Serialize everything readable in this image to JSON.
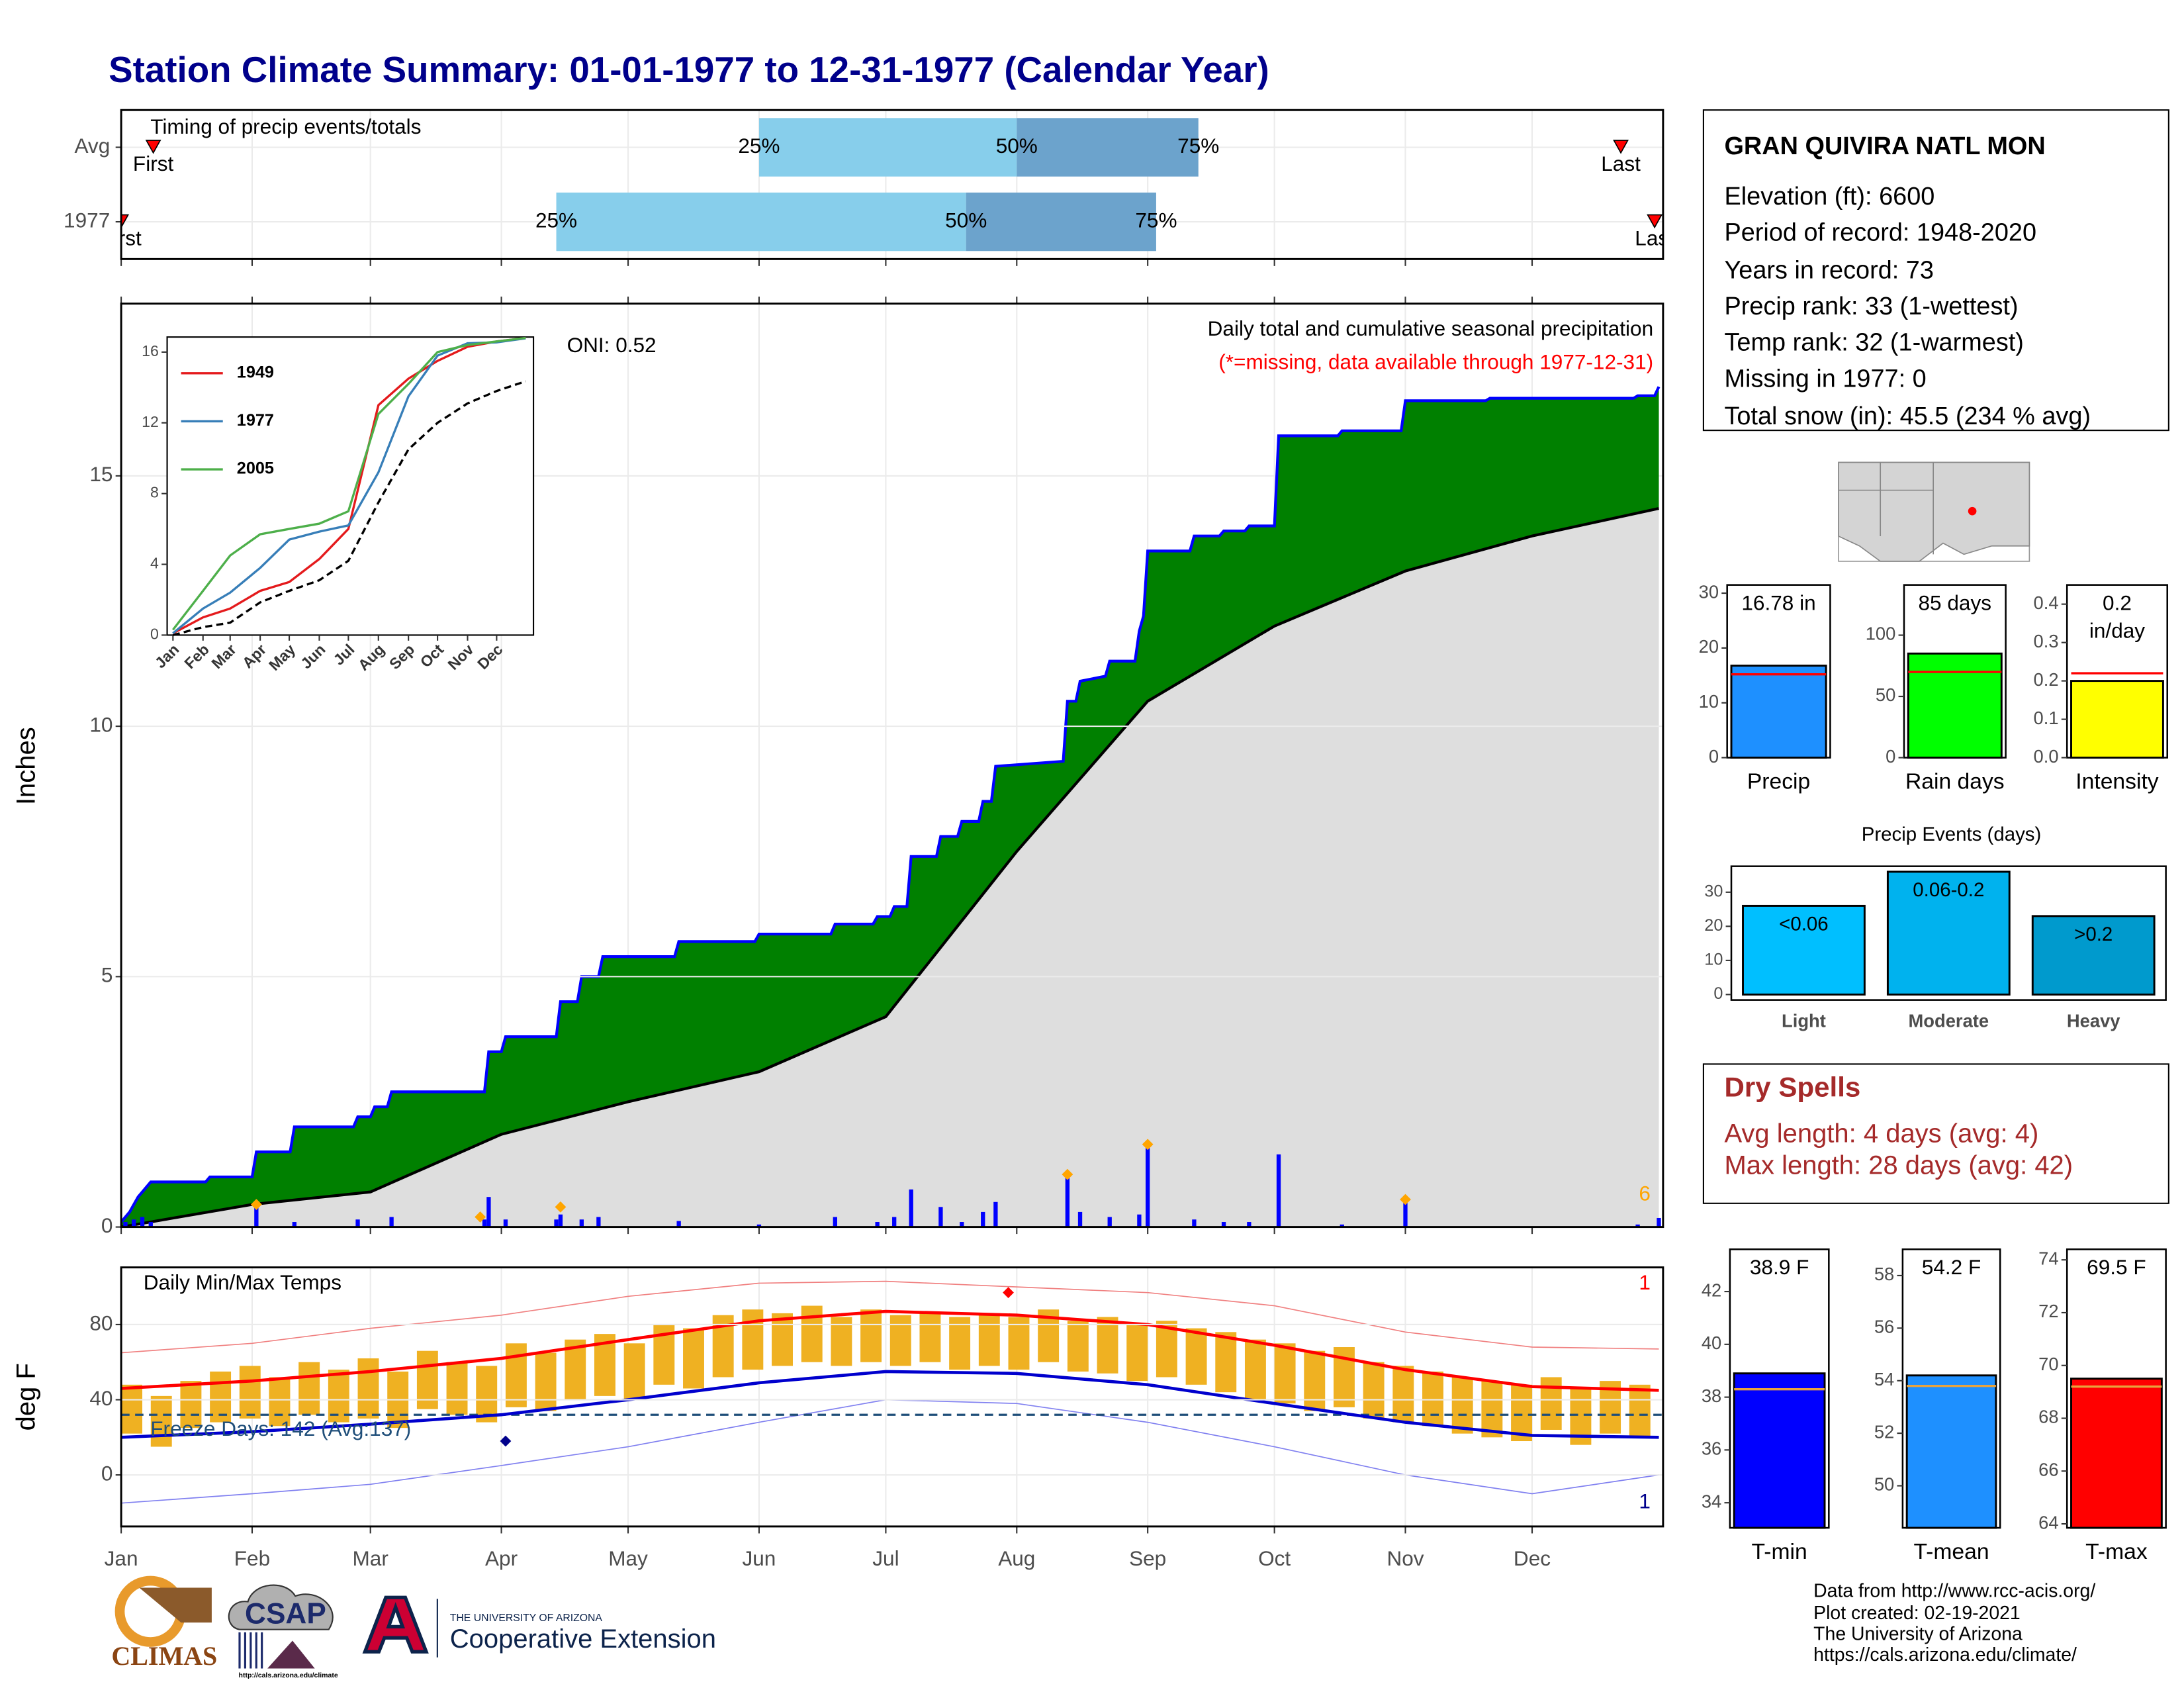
{
  "title": "Station Climate Summary: 01-01-1977 to 12-31-1977 (Calendar Year)",
  "chart_data": [
    {
      "type": "timing",
      "title": "Timing of precip events/totals",
      "categories": [
        "Avg",
        "1977"
      ],
      "labels": [
        "First",
        "25%",
        "50%",
        "75%",
        "Last"
      ],
      "values": [
        [
          8.6,
          152,
          213,
          256,
          356
        ],
        [
          1,
          104,
          201,
          246,
          364
        ]
      ],
      "colors": [
        "#87ceeb",
        "#6ca3cc"
      ],
      "marker_color": "#ff0000",
      "xlim": [
        1,
        366
      ],
      "xticks": [
        1,
        32,
        60,
        91,
        121,
        152,
        182,
        213,
        244,
        274,
        305,
        335
      ],
      "grid": true
    },
    {
      "type": "cumulative_precip",
      "ylabel": "Inches",
      "ylim": [
        0,
        18.44
      ],
      "yticks": [
        0,
        5,
        10,
        15
      ],
      "xlim": [
        1,
        366
      ],
      "xticks": [
        1,
        32,
        60,
        91,
        121,
        152,
        182,
        213,
        244,
        274,
        305,
        335
      ],
      "grid": true,
      "annotations": [
        "Daily total and cumulative seasonal precipitation",
        "(*=missing, data available through 1977-12-31)",
        "ONI: 0.52"
      ],
      "record_count": 6,
      "observed": {
        "color": "#0000ff",
        "fill": "#008000",
        "x": [
          1,
          3,
          5,
          8,
          21,
          22,
          32,
          33,
          41,
          42,
          56,
          57,
          60,
          61,
          64,
          65,
          87,
          88,
          91,
          92,
          104,
          105,
          109,
          110,
          114,
          115,
          132,
          133,
          151,
          152,
          169,
          170,
          179,
          180,
          183,
          184,
          187,
          188,
          194,
          195,
          199,
          200,
          204,
          205,
          207,
          208,
          224,
          225,
          227,
          228,
          234,
          235,
          241,
          242,
          243,
          244,
          254,
          255,
          261,
          262,
          267,
          268,
          274,
          275,
          289,
          290,
          304,
          305,
          324,
          325,
          359,
          360,
          364,
          365
        ],
        "values": [
          0.1,
          0.3,
          0.6,
          0.9,
          0.9,
          1.0,
          1.0,
          1.5,
          1.5,
          2.0,
          2.0,
          2.2,
          2.2,
          2.4,
          2.4,
          2.7,
          2.7,
          3.5,
          3.5,
          3.8,
          3.8,
          4.5,
          4.5,
          5.0,
          5.0,
          5.4,
          5.4,
          5.7,
          5.7,
          5.85,
          5.85,
          6.05,
          6.05,
          6.2,
          6.2,
          6.4,
          6.4,
          7.4,
          7.4,
          7.8,
          7.8,
          8.1,
          8.1,
          8.5,
          8.5,
          9.2,
          9.3,
          10.5,
          10.5,
          10.9,
          11.0,
          11.3,
          11.3,
          11.9,
          12.2,
          13.5,
          13.5,
          13.8,
          13.8,
          13.9,
          13.9,
          14.0,
          14.0,
          15.8,
          15.8,
          15.9,
          15.9,
          16.5,
          16.5,
          16.55,
          16.55,
          16.6,
          16.6,
          16.78
        ]
      },
      "average": {
        "color": "#000000",
        "fill": "#dedede",
        "x": [
          1,
          32,
          60,
          91,
          121,
          152,
          182,
          213,
          244,
          274,
          305,
          335,
          365
        ],
        "values": [
          0,
          0.45,
          0.7,
          1.85,
          2.5,
          3.1,
          4.2,
          7.5,
          10.5,
          12.0,
          13.1,
          13.8,
          14.35
        ]
      },
      "daily": {
        "color": "#0000ff",
        "x": [
          2,
          4,
          6,
          8,
          33,
          42,
          57,
          65,
          87,
          88,
          92,
          104,
          105,
          110,
          114,
          133,
          152,
          170,
          180,
          184,
          188,
          195,
          200,
          205,
          208,
          225,
          228,
          235,
          242,
          244,
          255,
          262,
          268,
          275,
          290,
          305,
          360,
          365
        ],
        "values": [
          0.1,
          0.15,
          0.2,
          0.1,
          0.45,
          0.1,
          0.15,
          0.2,
          0.15,
          0.6,
          0.15,
          0.15,
          0.25,
          0.15,
          0.2,
          0.12,
          0.05,
          0.2,
          0.1,
          0.2,
          0.75,
          0.4,
          0.1,
          0.3,
          0.5,
          1.0,
          0.3,
          0.2,
          0.25,
          1.65,
          0.15,
          0.1,
          0.1,
          1.45,
          0.05,
          0.55,
          0.05,
          0.18
        ]
      },
      "records": {
        "color": "#ffa500",
        "x": [
          33,
          86,
          105,
          225,
          244,
          305
        ],
        "values": [
          0.45,
          0.2,
          0.4,
          1.05,
          1.65,
          0.55
        ]
      }
    },
    {
      "type": "inset_lines",
      "xlim": [
        -5,
        373
      ],
      "ylim": [
        0,
        16.85
      ],
      "yticks": [
        0,
        4,
        8,
        12,
        16
      ],
      "xticks": [
        {
          "value": 1,
          "label": "Jan"
        },
        {
          "value": 32,
          "label": "Feb"
        },
        {
          "value": 60,
          "label": "Mar"
        },
        {
          "value": 91,
          "label": "Apr"
        },
        {
          "value": 121,
          "label": "May"
        },
        {
          "value": 152,
          "label": "Jun"
        },
        {
          "value": 182,
          "label": "Jul"
        },
        {
          "value": 213,
          "label": "Aug"
        },
        {
          "value": 244,
          "label": "Sep"
        },
        {
          "value": 274,
          "label": "Oct"
        },
        {
          "value": 305,
          "label": "Nov"
        },
        {
          "value": 335,
          "label": "Dec"
        }
      ],
      "x": [
        1,
        32,
        60,
        91,
        121,
        152,
        182,
        213,
        244,
        274,
        305,
        335,
        365
      ],
      "series": [
        {
          "name": "1949",
          "color": "#e41a1c",
          "values": [
            0.1,
            1.0,
            1.5,
            2.5,
            3.0,
            4.3,
            6.0,
            13.0,
            14.5,
            15.5,
            16.3,
            16.6,
            16.8
          ]
        },
        {
          "name": "1977",
          "color": "#377eb8",
          "values": [
            0.1,
            1.5,
            2.4,
            3.8,
            5.4,
            5.85,
            6.2,
            9.2,
            13.5,
            15.8,
            16.5,
            16.55,
            16.78
          ]
        },
        {
          "name": "2005",
          "color": "#4daf4a",
          "values": [
            0.3,
            2.5,
            4.5,
            5.7,
            6.0,
            6.3,
            7.0,
            12.5,
            14.2,
            16.0,
            16.4,
            16.6,
            16.8
          ]
        }
      ]
    },
    {
      "type": "temps",
      "title": "Daily Min/Max Temps",
      "ylabel": "deg F",
      "ylim": [
        -27.4,
        110.4
      ],
      "yticks": [
        0,
        40,
        80
      ],
      "xlim": [
        1,
        366
      ],
      "xticks": [
        {
          "value": 1,
          "label": "Jan"
        },
        {
          "value": 32,
          "label": "Feb"
        },
        {
          "value": 60,
          "label": "Mar"
        },
        {
          "value": 91,
          "label": "Apr"
        },
        {
          "value": 121,
          "label": "May"
        },
        {
          "value": 152,
          "label": "Jun"
        },
        {
          "value": 182,
          "label": "Jul"
        },
        {
          "value": 213,
          "label": "Aug"
        },
        {
          "value": 244,
          "label": "Sep"
        },
        {
          "value": 274,
          "label": "Oct"
        },
        {
          "value": 305,
          "label": "Nov"
        },
        {
          "value": 335,
          "label": "Dec"
        }
      ],
      "grid": true,
      "bar_color": "#efb122",
      "bars": {
        "x": [
          1,
          8,
          15,
          22,
          29,
          36,
          43,
          50,
          57,
          64,
          71,
          78,
          85,
          92,
          99,
          106,
          113,
          120,
          127,
          134,
          141,
          148,
          155,
          162,
          169,
          176,
          183,
          190,
          197,
          204,
          211,
          218,
          225,
          232,
          239,
          246,
          253,
          260,
          267,
          274,
          281,
          288,
          295,
          302,
          309,
          316,
          323,
          330,
          337,
          344,
          351,
          358
        ],
        "max": [
          48,
          42,
          50,
          55,
          58,
          52,
          60,
          56,
          62,
          55,
          66,
          60,
          58,
          70,
          65,
          72,
          75,
          70,
          80,
          78,
          85,
          88,
          86,
          90,
          84,
          88,
          85,
          86,
          84,
          86,
          84,
          88,
          82,
          84,
          80,
          82,
          78,
          76,
          72,
          70,
          66,
          68,
          60,
          58,
          55,
          52,
          50,
          48,
          52,
          46,
          50,
          48
        ],
        "min": [
          22,
          15,
          25,
          28,
          30,
          26,
          32,
          28,
          30,
          25,
          35,
          32,
          28,
          36,
          34,
          40,
          42,
          40,
          48,
          46,
          52,
          56,
          58,
          60,
          58,
          60,
          58,
          60,
          56,
          58,
          56,
          60,
          55,
          54,
          50,
          52,
          48,
          44,
          40,
          38,
          34,
          36,
          30,
          28,
          26,
          22,
          20,
          18,
          24,
          16,
          22,
          20
        ]
      },
      "line_x": [
        1,
        32,
        60,
        91,
        121,
        152,
        182,
        213,
        244,
        274,
        305,
        335,
        365
      ],
      "lines": [
        {
          "color": "#f08080",
          "width": 0.8,
          "values": [
            65,
            70,
            78,
            85,
            95,
            102,
            103,
            100,
            97,
            90,
            76,
            68,
            67
          ]
        },
        {
          "color": "#8080f0",
          "width": 0.8,
          "values": [
            -15,
            -10,
            -5,
            5,
            15,
            28,
            40,
            38,
            28,
            15,
            0,
            -10,
            0
          ]
        },
        {
          "color": "#ff0000",
          "width": 2.2,
          "values": [
            46,
            50,
            55,
            62,
            72,
            82,
            87,
            85,
            80,
            69,
            56,
            47,
            45
          ]
        },
        {
          "color": "#0000cd",
          "width": 2.2,
          "values": [
            20,
            23,
            27,
            32,
            40,
            49,
            55,
            54,
            48,
            38,
            28,
            21,
            20
          ]
        }
      ],
      "freeze": {
        "value": 32,
        "color": "#1f4e79",
        "label": "Freeze Days: 142 (Avg:137)"
      },
      "record_high": {
        "color": "#ff0000",
        "count": 1,
        "x": [
          211
        ],
        "values": [
          97
        ]
      },
      "record_low": {
        "color": "#00008b",
        "count": 1,
        "x": [
          92
        ],
        "values": [
          18
        ]
      }
    },
    {
      "type": "single_bar",
      "xlabel": "Precip",
      "value": 16.78,
      "value_label": "16.78 in",
      "average": 15.2,
      "ylim": [
        0,
        31.5
      ],
      "yticks": [
        0,
        10,
        20,
        30
      ],
      "color": "#1e90ff",
      "average_color": "#ff0000"
    },
    {
      "type": "single_bar",
      "xlabel": "Rain days",
      "value": 85,
      "value_label": "85 days",
      "average": 70,
      "ylim": [
        0,
        141
      ],
      "yticks": [
        0,
        50,
        100
      ],
      "color": "#00ff00",
      "average_color": "#ff0000"
    },
    {
      "type": "single_bar",
      "xlabel": "Intensity",
      "value": 0.2,
      "value_label": "0.2\nin/day",
      "average": 0.22,
      "ylim": [
        0,
        0.45
      ],
      "yticks": [
        {
          "value": 0,
          "label": "0.0"
        },
        0.1,
        0.2,
        0.3,
        0.4
      ],
      "color": "#ffff00",
      "average_color": "#ff0000"
    },
    {
      "type": "events",
      "title": "Precip Events (days)",
      "categories": [
        "Light",
        "Moderate",
        "Heavy"
      ],
      "values": [
        26,
        36,
        23
      ],
      "bin_labels": [
        "<0.06",
        "0.06-0.2",
        ">0.2"
      ],
      "colors": [
        "#00bfff",
        "#00b2ee",
        "#009acd"
      ],
      "ylim": [
        -1.6,
        37.6
      ],
      "yticks": [
        0,
        10,
        20,
        30
      ]
    },
    {
      "type": "single_bar",
      "xlabel": "T-min",
      "value": 38.9,
      "value_label": "38.9 F",
      "average": 38.3,
      "ylim": [
        33.05,
        43.6
      ],
      "yticks": [
        34,
        36,
        38,
        40,
        42
      ],
      "color": "#0000ff",
      "average_color": "#e8a33d"
    },
    {
      "type": "single_bar",
      "xlabel": "T-mean",
      "value": 54.2,
      "value_label": "54.2 F",
      "average": 53.8,
      "ylim": [
        48.4,
        59.0
      ],
      "yticks": [
        50,
        52,
        54,
        56,
        58
      ],
      "color": "#1e90ff",
      "average_color": "#e8a33d"
    },
    {
      "type": "single_bar",
      "xlabel": "T-max",
      "value": 69.5,
      "value_label": "69.5 F",
      "average": 69.2,
      "ylim": [
        63.85,
        74.4
      ],
      "yticks": [
        64,
        66,
        68,
        70,
        72,
        74
      ],
      "color": "#ff0000",
      "average_color": "#e8a33d"
    }
  ],
  "station": {
    "name": "GRAN QUIVIRA NATL MON",
    "lines": [
      "Elevation (ft): 6600",
      "Period of record: 1948-2020",
      "Years in record: 73",
      "Precip rank: 33 (1-wettest)",
      "Temp rank: 32 (1-warmest)",
      "Missing in 1977: 0",
      "Total snow (in): 45.5 (234 % avg)"
    ]
  },
  "dry_spells": {
    "title": "Dry Spells",
    "lines": [
      "Avg length: 4 days (avg: 4)",
      "Max length: 28 days (avg: 42)"
    ]
  },
  "footer": {
    "lines": [
      "Data from http://www.rcc-acis.org/",
      "Plot created: 02-19-2021",
      "The University of Arizona",
      "https://cals.arizona.edu/climate/"
    ]
  },
  "logos": {
    "climas": "CLIMAS",
    "csap": "CSAP",
    "csap_url": "http://cals.arizona.edu/climate",
    "university": "THE UNIVERSITY OF ARIZONA",
    "extension": "Cooperative Extension"
  }
}
